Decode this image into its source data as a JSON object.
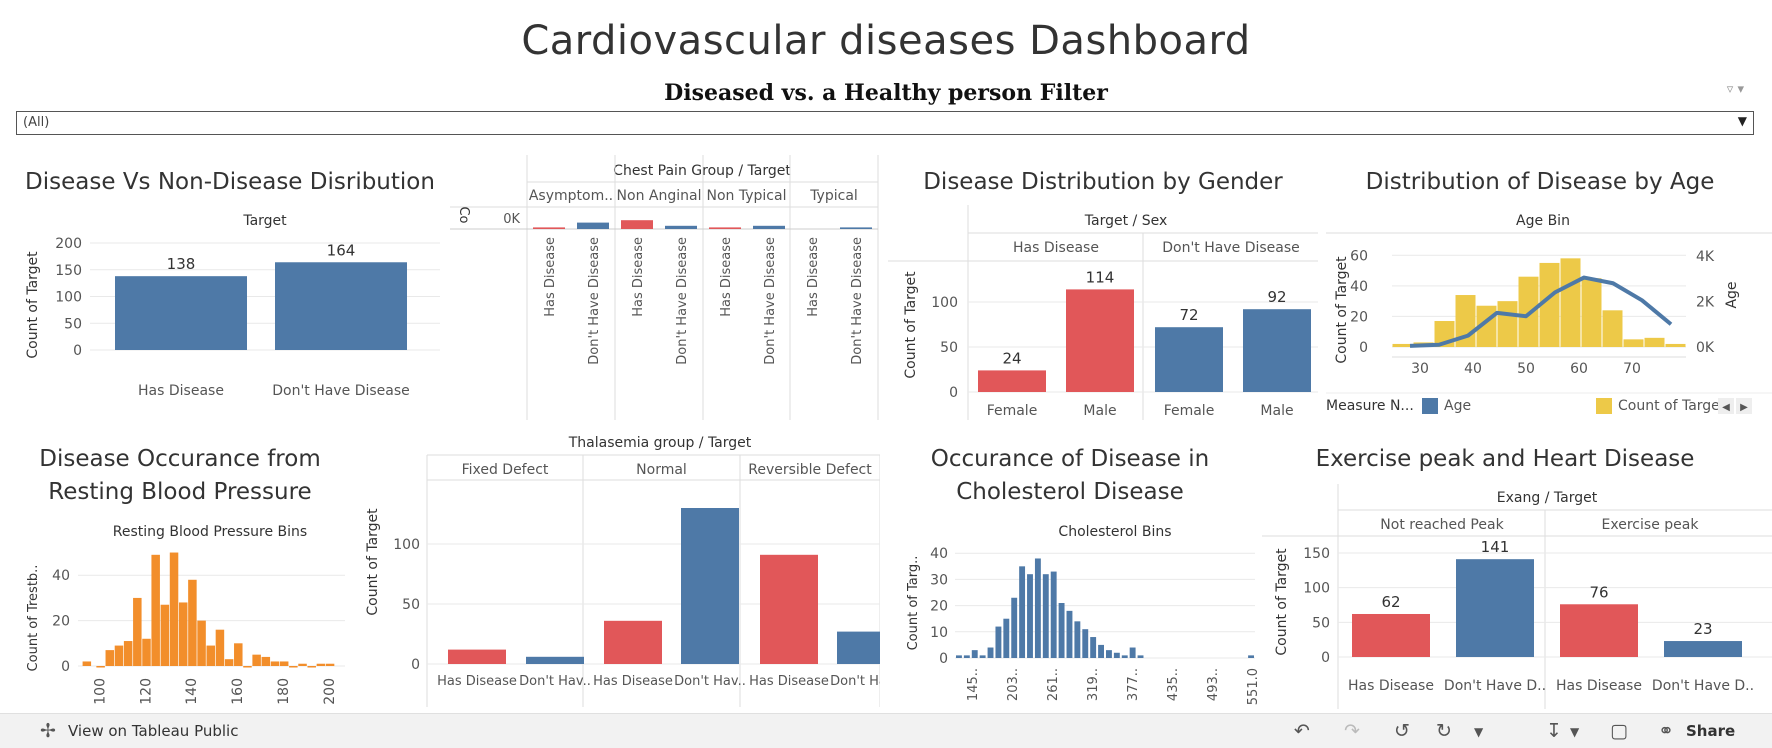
{
  "dashboard": {
    "title": "Cardiovascular diseases Dashboard",
    "filter_title": "Diseased vs. a Healthy person Filter",
    "filter_value": "(All)"
  },
  "colors": {
    "blue": "#4e79a7",
    "red": "#e15759",
    "orange": "#f28e2b",
    "yellow": "#edc948",
    "grid": "#e9e9e9"
  },
  "sheets": {
    "distribution": {
      "title": "Disease Vs Non-Disease Disribution"
    },
    "gender": {
      "title": "Disease Distribution by Gender"
    },
    "age": {
      "title": "Distribution of Disease by Age"
    },
    "bp": {
      "title": "Disease Occurance from Resting Blood Pressure"
    },
    "cholesterol": {
      "title": "Occurance of Disease in Cholesterol Disease"
    },
    "exercise": {
      "title": "Exercise peak and Heart Disease"
    }
  },
  "chart_data": [
    {
      "id": "distribution",
      "type": "bar",
      "header": "Target",
      "categories": [
        "Has Disease",
        "Don't Have Disease"
      ],
      "values": [
        138,
        164
      ],
      "colors": [
        "#4e79a7",
        "#4e79a7"
      ],
      "ylabel": "Count of Target",
      "yticks": [
        "200",
        "150",
        "100",
        "50",
        "0"
      ],
      "ylim": [
        0,
        200
      ],
      "data_labels": [
        "138",
        "164"
      ]
    },
    {
      "id": "chestpain",
      "type": "bar",
      "header": "Chest Pain Group / Target",
      "groups": [
        "Asymptom..",
        "Non Anginal",
        "Non Typical",
        "Typical"
      ],
      "categories": [
        "Has Disease",
        "Don't Have Disease"
      ],
      "values": [
        [
          2,
          8
        ],
        [
          11,
          4
        ],
        [
          2,
          4
        ],
        [
          0,
          2
        ]
      ],
      "ylabel": "Co",
      "ytick": "0K"
    },
    {
      "id": "gender",
      "type": "bar",
      "header": "Target / Sex",
      "groups": [
        "Has Disease",
        "Don't Have Disease"
      ],
      "categories": [
        "Female",
        "Male",
        "Female",
        "Male"
      ],
      "values": [
        24,
        114,
        72,
        92
      ],
      "colors": [
        "#e15759",
        "#e15759",
        "#4e79a7",
        "#4e79a7"
      ],
      "data_labels": [
        "24",
        "114",
        "72",
        "92"
      ],
      "ylabel": "Count of Target",
      "yticks": [
        "100",
        "50",
        "0"
      ],
      "ylim": [
        0,
        130
      ]
    },
    {
      "id": "age",
      "type": "bar",
      "header": "Age Bin",
      "x": [
        29,
        34,
        39,
        41,
        45,
        49,
        51,
        55,
        59,
        61,
        65,
        69,
        71,
        75
      ],
      "bin_counts": [
        0.2,
        0.3,
        1.7,
        3.4,
        2.7,
        3.0,
        4.6,
        5.5,
        5.8,
        4.5,
        2.4,
        0.5,
        0.6,
        0.2
      ],
      "bin_centers": [
        26,
        31,
        36,
        41,
        46,
        51,
        56,
        61,
        66,
        71,
        76,
        81,
        86,
        91
      ],
      "line_x": [
        29,
        34,
        39,
        44,
        49,
        54,
        59,
        64,
        69,
        74
      ],
      "line_y": [
        0.05,
        0.1,
        0.5,
        1.5,
        1.35,
        2.4,
        3.05,
        2.8,
        2.05,
        1.0
      ],
      "xticks": [
        "30",
        "40",
        "50",
        "60",
        "70"
      ],
      "xtick_values": [
        30,
        40,
        50,
        60,
        70
      ],
      "left_label": "Count of Target",
      "left_ticks": [
        "60",
        "40",
        "20",
        "0"
      ],
      "right_label": "Age",
      "right_ticks": [
        "4K",
        "2K",
        "0K"
      ],
      "legend_title": "Measure N...",
      "legend": [
        "Age",
        "Count of Targe"
      ]
    },
    {
      "id": "bp",
      "type": "bar",
      "header": "Resting Blood Pressure Bins",
      "x": [
        94,
        100,
        104,
        108,
        112,
        116,
        120,
        124,
        128,
        132,
        136,
        140,
        144,
        148,
        152,
        156,
        160,
        164,
        168,
        172,
        176,
        180,
        184,
        188,
        192,
        196,
        200
      ],
      "values": [
        2,
        0,
        7,
        9,
        11,
        30,
        12,
        49,
        27,
        50,
        28,
        38,
        20,
        9,
        16,
        3,
        10,
        0,
        5,
        4,
        2,
        2,
        0,
        1,
        0,
        1,
        1
      ],
      "xticks": [
        "100",
        "120",
        "140",
        "160",
        "180",
        "200"
      ],
      "ylabel": "Count of Trestb..",
      "yticks": [
        "40",
        "20",
        "0"
      ],
      "ylim": [
        0,
        52
      ]
    },
    {
      "id": "thal",
      "type": "bar",
      "header": "Thalasemia group / Target",
      "groups": [
        "Fixed Defect",
        "Normal",
        "Reversible Defect"
      ],
      "categories": [
        "Has Disease",
        "Don't Hav..",
        "Has Disease",
        "Don't Hav..",
        "Has Disease",
        "Don't Hav.."
      ],
      "values": [
        12,
        6,
        36,
        130,
        91,
        27
      ],
      "colors": [
        "#e15759",
        "#4e79a7",
        "#e15759",
        "#4e79a7",
        "#e15759",
        "#4e79a7"
      ],
      "ylabel": "Count of Target",
      "yticks": [
        "100",
        "50",
        "0"
      ],
      "ylim": [
        0,
        135
      ]
    },
    {
      "id": "cholesterol",
      "type": "bar",
      "header": "Cholesterol Bins",
      "values": [
        1,
        1,
        3,
        1,
        4,
        12,
        15,
        23,
        35,
        32,
        38,
        32,
        33,
        21,
        18,
        14,
        11,
        8,
        5,
        3,
        2,
        1,
        4,
        1,
        0,
        0,
        0,
        0,
        0,
        0,
        0,
        0,
        0,
        0,
        0,
        0,
        0,
        1
      ],
      "xticks": [
        "145..",
        "203..",
        "261..",
        "319..",
        "377..",
        "435..",
        "493..",
        "551.0"
      ],
      "ylabel": "Count of Targ..",
      "yticks": [
        "40",
        "30",
        "20",
        "10",
        "0"
      ],
      "ylim": [
        0,
        42
      ]
    },
    {
      "id": "exercise",
      "type": "bar",
      "header": "Exang / Target",
      "groups": [
        "Not reached Peak",
        "Exercise peak"
      ],
      "categories": [
        "Has Disease",
        "Don't Have D..",
        "Has Disease",
        "Don't Have D.."
      ],
      "values": [
        62,
        141,
        76,
        23
      ],
      "colors": [
        "#e15759",
        "#4e79a7",
        "#e15759",
        "#4e79a7"
      ],
      "data_labels": [
        "62",
        "141",
        "76",
        "23"
      ],
      "ylabel": "Count of Target",
      "yticks": [
        "150",
        "100",
        "50",
        "0"
      ],
      "ylim": [
        0,
        160
      ]
    }
  ],
  "toolbar": {
    "view_label": "View on Tableau Public",
    "share_label": "Share"
  }
}
